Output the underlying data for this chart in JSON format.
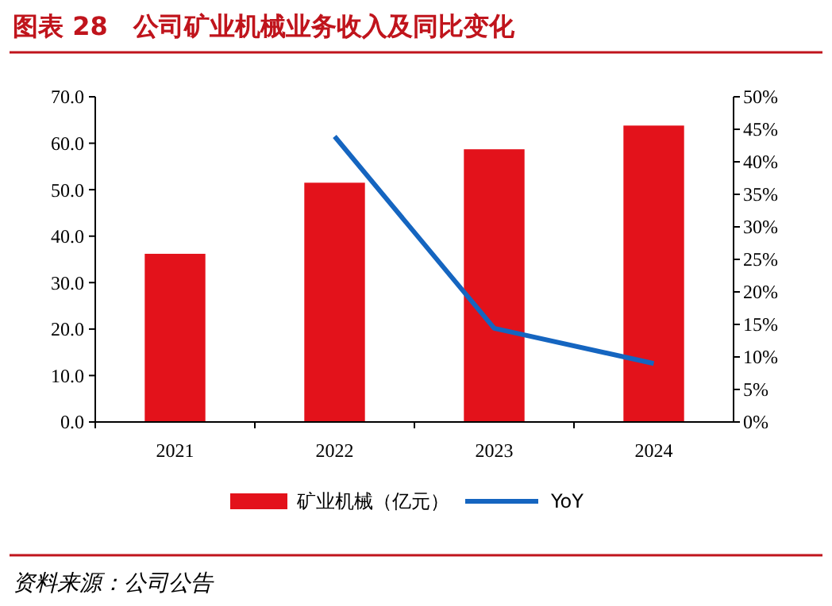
{
  "chart_data": {
    "type": "bar",
    "title": "图表 28　公司矿业机械业务收入及同比变化",
    "categories": [
      "2021",
      "2022",
      "2023",
      "2024"
    ],
    "series": [
      {
        "name": "矿业机械（亿元）",
        "color": "#e3121b",
        "values": [
          36.2,
          51.5,
          58.7,
          63.8
        ]
      },
      {
        "name": "YoY",
        "type": "line",
        "axis": "y2",
        "color": "#1565c0",
        "values": [
          null,
          43.9,
          14.4,
          9.0
        ]
      }
    ],
    "ylim": [
      0,
      70
    ],
    "yticks": [
      {
        "value": 0,
        "label": "0.0"
      },
      {
        "value": 10,
        "label": "10.0"
      },
      {
        "value": 20,
        "label": "20.0"
      },
      {
        "value": 30,
        "label": "30.0"
      },
      {
        "value": 40,
        "label": "40.0"
      },
      {
        "value": 50,
        "label": "50.0"
      },
      {
        "value": 60,
        "label": "60.0"
      },
      {
        "value": 70,
        "label": "70.0"
      }
    ],
    "y2lim": [
      0,
      50
    ],
    "y2ticks": [
      {
        "value": 0,
        "label": "0%"
      },
      {
        "value": 5,
        "label": "5%"
      },
      {
        "value": 10,
        "label": "10%"
      },
      {
        "value": 15,
        "label": "15%"
      },
      {
        "value": 20,
        "label": "20%"
      },
      {
        "value": 25,
        "label": "25%"
      },
      {
        "value": 30,
        "label": "30%"
      },
      {
        "value": 35,
        "label": "35%"
      },
      {
        "value": 40,
        "label": "40%"
      },
      {
        "value": 45,
        "label": "45%"
      },
      {
        "value": 50,
        "label": "50%"
      }
    ],
    "legend": "bottom",
    "marker": "none",
    "annotations": [
      "资料来源：公司公告"
    ]
  }
}
